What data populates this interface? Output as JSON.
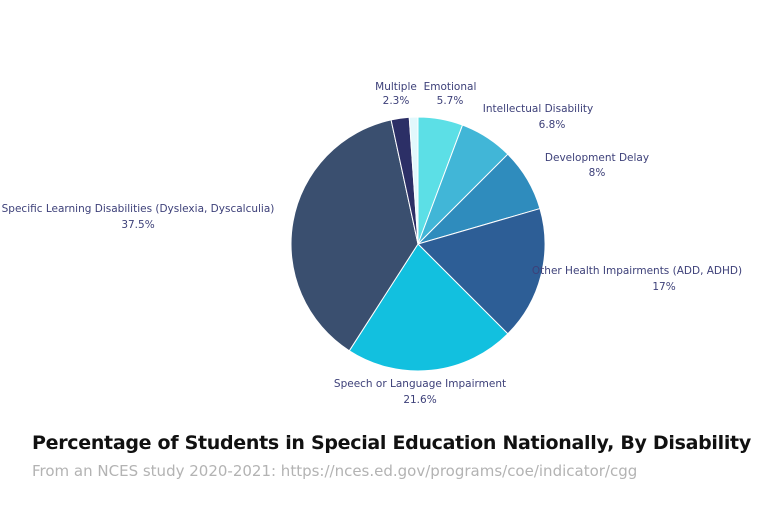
{
  "chart_data": {
    "type": "pie",
    "title": "Percentage of Students in Special Education Nationally, By Disability",
    "subtitle": "From an NCES study 2020-2021: https://nces.ed.gov/programs/coe/indicator/cgg",
    "start_angle": "top, clockwise",
    "slices": [
      {
        "label": "Emotional",
        "value": 5.7,
        "value_label": "5.7%",
        "color": "#5cdfe6"
      },
      {
        "label": "Intellectual Disability",
        "value": 6.8,
        "value_label": "6.8%",
        "color": "#41b6d7"
      },
      {
        "label": "Development Delay",
        "value": 8,
        "value_label": "8%",
        "color": "#2f8cbd"
      },
      {
        "label": "Other Health Impairments (ADD, ADHD)",
        "value": 17,
        "value_label": "17%",
        "color": "#2d5e96"
      },
      {
        "label": "Speech or Language Impairment",
        "value": 21.6,
        "value_label": "21.6%",
        "color": "#12c0df"
      },
      {
        "label": "Specific Learning Disabilities (Dyslexia, Dyscalculia)",
        "value": 37.5,
        "value_label": "37.5%",
        "color": "#3a4f6f"
      },
      {
        "label": "Multiple",
        "value": 2.3,
        "value_label": "2.3%",
        "color": "#2c2f66"
      },
      {
        "label": "",
        "value": 1.1,
        "value_label": "",
        "color": "#e2f8fc"
      }
    ]
  }
}
